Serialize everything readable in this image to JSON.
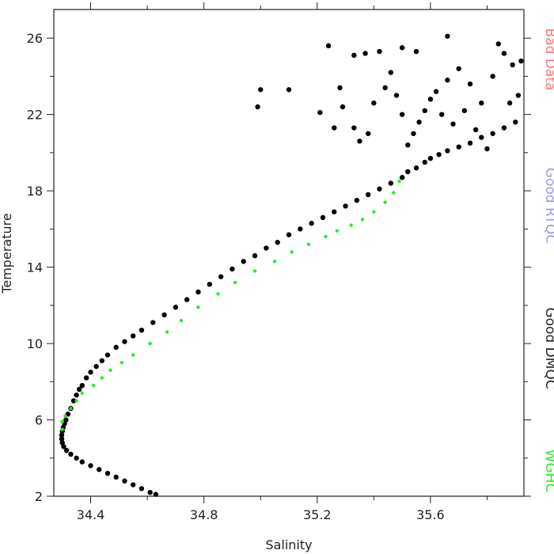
{
  "chart_data": {
    "type": "scatter",
    "xlabel": "Salinity",
    "ylabel": "Temperature",
    "xlim": [
      34.27,
      35.93
    ],
    "ylim": [
      2,
      27.5
    ],
    "xticks": [
      34.4,
      34.8,
      35.2,
      35.6
    ],
    "xtick_labels": [
      "34.4",
      "34.8",
      "35.2",
      "35.6"
    ],
    "yticks": [
      2,
      6,
      10,
      14,
      18,
      22,
      26
    ],
    "ytick_labels": [
      "2",
      "6",
      "10",
      "14",
      "18",
      "22",
      "26"
    ],
    "grid": false,
    "legend_placement": "right, rotated vertically",
    "legend": [
      {
        "label": "Bad Data",
        "color": "#ff7777"
      },
      {
        "label": "Good RTQC",
        "color": "#9999ee"
      },
      {
        "label": "Good DMQC",
        "color": "#222222"
      },
      {
        "label": "WGHC",
        "color": "#22ee22"
      }
    ],
    "series": [
      {
        "name": "Good DMQC",
        "color": "#000000",
        "marker_radius": 3.2,
        "points": [
          [
            34.63,
            2.1
          ],
          [
            34.61,
            2.2
          ],
          [
            34.58,
            2.4
          ],
          [
            34.55,
            2.6
          ],
          [
            34.52,
            2.8
          ],
          [
            34.49,
            3.0
          ],
          [
            34.46,
            3.2
          ],
          [
            34.43,
            3.4
          ],
          [
            34.4,
            3.6
          ],
          [
            34.37,
            3.8
          ],
          [
            34.35,
            4.0
          ],
          [
            34.33,
            4.2
          ],
          [
            34.315,
            4.4
          ],
          [
            34.305,
            4.6
          ],
          [
            34.3,
            4.8
          ],
          [
            34.298,
            5.0
          ],
          [
            34.298,
            5.2
          ],
          [
            34.3,
            5.4
          ],
          [
            34.303,
            5.6
          ],
          [
            34.308,
            5.8
          ],
          [
            34.313,
            6.0
          ],
          [
            34.32,
            6.3
          ],
          [
            34.33,
            6.6
          ],
          [
            34.34,
            7.0
          ],
          [
            34.35,
            7.3
          ],
          [
            34.36,
            7.6
          ],
          [
            34.37,
            7.8
          ],
          [
            34.385,
            8.2
          ],
          [
            34.4,
            8.5
          ],
          [
            34.42,
            8.8
          ],
          [
            34.44,
            9.1
          ],
          [
            34.46,
            9.4
          ],
          [
            34.49,
            9.8
          ],
          [
            34.52,
            10.1
          ],
          [
            34.55,
            10.4
          ],
          [
            34.58,
            10.7
          ],
          [
            34.62,
            11.1
          ],
          [
            34.66,
            11.5
          ],
          [
            34.7,
            11.9
          ],
          [
            34.74,
            12.3
          ],
          [
            34.78,
            12.7
          ],
          [
            34.82,
            13.1
          ],
          [
            34.86,
            13.5
          ],
          [
            34.9,
            13.9
          ],
          [
            34.94,
            14.3
          ],
          [
            34.98,
            14.6
          ],
          [
            35.02,
            15.0
          ],
          [
            35.06,
            15.3
          ],
          [
            35.1,
            15.7
          ],
          [
            35.14,
            16.0
          ],
          [
            35.18,
            16.3
          ],
          [
            35.22,
            16.6
          ],
          [
            35.26,
            16.9
          ],
          [
            35.3,
            17.2
          ],
          [
            35.34,
            17.5
          ],
          [
            35.38,
            17.8
          ],
          [
            35.42,
            18.1
          ],
          [
            35.46,
            18.4
          ],
          [
            35.5,
            18.7
          ],
          [
            35.52,
            19.0
          ],
          [
            35.55,
            19.2
          ],
          [
            35.58,
            19.5
          ],
          [
            35.6,
            19.7
          ],
          [
            35.63,
            19.9
          ],
          [
            35.66,
            20.1
          ],
          [
            35.7,
            20.3
          ],
          [
            35.74,
            20.5
          ],
          [
            35.78,
            20.8
          ],
          [
            35.82,
            21.0
          ],
          [
            35.86,
            21.3
          ],
          [
            35.9,
            21.6
          ],
          [
            35.52,
            20.4
          ],
          [
            35.54,
            21.0
          ],
          [
            35.56,
            21.6
          ],
          [
            35.58,
            22.2
          ],
          [
            35.6,
            22.8
          ],
          [
            35.62,
            23.2
          ],
          [
            35.5,
            22.0
          ],
          [
            35.48,
            23.0
          ],
          [
            35.46,
            24.2
          ],
          [
            35.44,
            23.4
          ],
          [
            35.4,
            22.6
          ],
          [
            35.38,
            21.0
          ],
          [
            35.35,
            20.6
          ],
          [
            35.33,
            21.3
          ],
          [
            35.66,
            23.8
          ],
          [
            35.7,
            24.4
          ],
          [
            35.74,
            23.6
          ],
          [
            35.78,
            22.6
          ],
          [
            35.82,
            24.0
          ],
          [
            35.86,
            25.2
          ],
          [
            35.89,
            24.6
          ],
          [
            35.91,
            23.0
          ],
          [
            35.84,
            25.7
          ],
          [
            35.66,
            26.1
          ],
          [
            35.55,
            25.3
          ],
          [
            35.5,
            25.5
          ],
          [
            35.42,
            25.3
          ],
          [
            35.37,
            25.2
          ],
          [
            35.33,
            25.1
          ],
          [
            35.24,
            25.6
          ],
          [
            35.28,
            23.4
          ],
          [
            35.29,
            22.4
          ],
          [
            35.26,
            21.3
          ],
          [
            35.21,
            22.1
          ],
          [
            35.1,
            23.3
          ],
          [
            35.0,
            23.3
          ],
          [
            34.99,
            22.4
          ],
          [
            35.64,
            22.0
          ],
          [
            35.68,
            21.5
          ],
          [
            35.72,
            22.2
          ],
          [
            35.76,
            21.2
          ],
          [
            35.8,
            20.2
          ],
          [
            35.88,
            22.6
          ],
          [
            35.92,
            24.8
          ]
        ]
      },
      {
        "name": "WGHC",
        "color": "#22ee22",
        "marker_radius": 2.2,
        "points": [
          [
            34.3,
            5.5
          ],
          [
            34.3,
            5.9
          ],
          [
            34.31,
            6.2
          ],
          [
            34.33,
            6.6
          ],
          [
            34.35,
            7.0
          ],
          [
            34.37,
            7.4
          ],
          [
            34.41,
            7.8
          ],
          [
            34.44,
            8.2
          ],
          [
            34.47,
            8.6
          ],
          [
            34.51,
            9.0
          ],
          [
            34.55,
            9.4
          ],
          [
            34.61,
            10.0
          ],
          [
            34.67,
            10.6
          ],
          [
            34.72,
            11.2
          ],
          [
            34.78,
            11.9
          ],
          [
            34.85,
            12.6
          ],
          [
            34.91,
            13.2
          ],
          [
            34.98,
            13.8
          ],
          [
            35.05,
            14.3
          ],
          [
            35.11,
            14.8
          ],
          [
            35.17,
            15.2
          ],
          [
            35.23,
            15.6
          ],
          [
            35.27,
            15.9
          ],
          [
            35.32,
            16.2
          ],
          [
            35.36,
            16.5
          ],
          [
            35.4,
            16.9
          ],
          [
            35.44,
            17.4
          ],
          [
            35.47,
            17.9
          ],
          [
            35.49,
            18.5
          ]
        ]
      }
    ]
  }
}
